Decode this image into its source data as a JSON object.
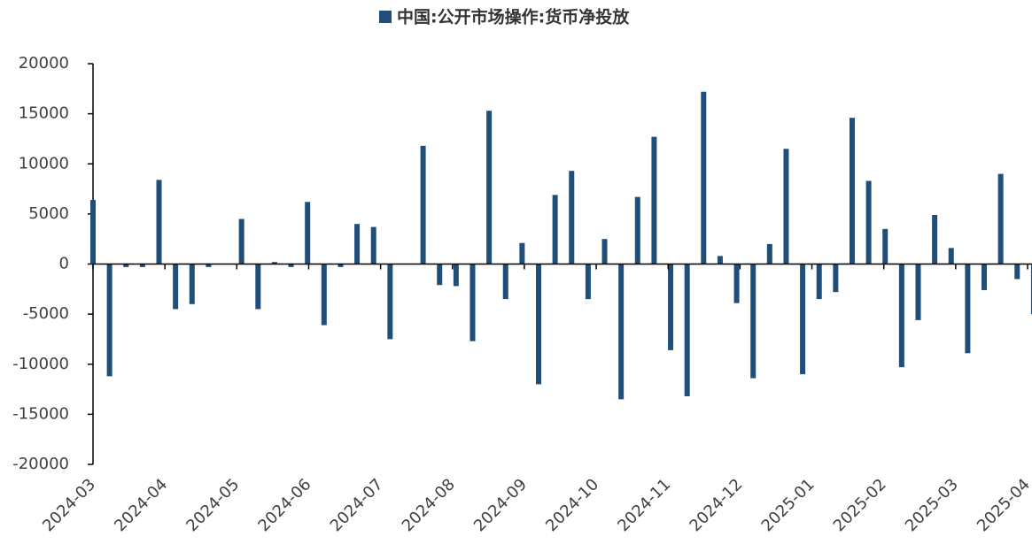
{
  "chart_data": {
    "type": "bar",
    "title": "中国:公开市场操作:货币净投放",
    "series": [
      {
        "name": "中国:公开市场操作:货币净投放",
        "color": "#1f4e79",
        "values": [
          6400,
          -11200,
          -300,
          -300,
          8400,
          -4500,
          -4000,
          -300,
          0,
          4500,
          -4500,
          200,
          -300,
          6200,
          -6100,
          -300,
          4000,
          3700,
          -7500,
          0,
          11800,
          -2100,
          -2200,
          -7700,
          15300,
          -3500,
          2100,
          -12000,
          6900,
          9300,
          -3500,
          2500,
          -13500,
          6700,
          12700,
          -8600,
          -13200,
          17200,
          800,
          -3900,
          -11400,
          2000,
          11500,
          -11000,
          -3500,
          -2800,
          14600,
          8300,
          3500,
          -10300,
          -5600,
          4900,
          1600,
          -8900,
          -2600,
          9000,
          -1500,
          -5000
        ]
      }
    ],
    "xticks": [
      "2024-03",
      "2024-04",
      "2024-05",
      "2024-06",
      "2024-07",
      "2024-08",
      "2024-09",
      "2024-10",
      "2024-11",
      "2024-12",
      "2025-01",
      "2025-02",
      "2025-03",
      "2025-04"
    ],
    "ylim": [
      -20000,
      20000
    ],
    "yticks": [
      -20000,
      -15000,
      -10000,
      -5000,
      0,
      5000,
      10000,
      15000,
      20000
    ]
  }
}
